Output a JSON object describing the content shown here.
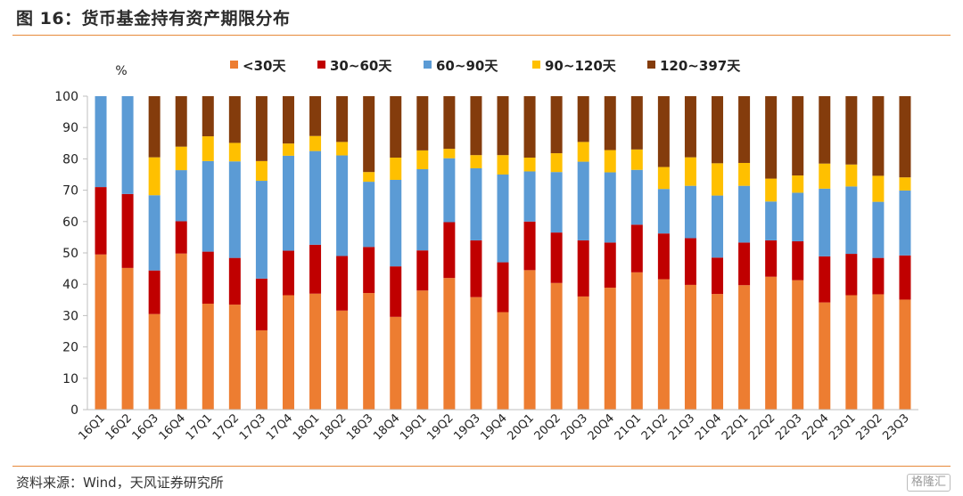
{
  "figure": {
    "title": "图 16：货币基金持有资产期限分布",
    "source": "资料来源：Wind，天风证券研究所",
    "watermark": "格隆汇"
  },
  "chart_data": {
    "type": "bar",
    "stacked": true,
    "y_unit_label": "%",
    "ylim": [
      0,
      100
    ],
    "y_ticks": [
      0,
      10,
      20,
      30,
      40,
      50,
      60,
      70,
      80,
      90,
      100
    ],
    "grid": false,
    "legend_position": "top",
    "categories": [
      "16Q1",
      "16Q2",
      "16Q3",
      "16Q4",
      "17Q1",
      "17Q2",
      "17Q3",
      "17Q4",
      "18Q1",
      "18Q2",
      "18Q3",
      "18Q4",
      "19Q1",
      "19Q2",
      "19Q3",
      "19Q4",
      "20Q1",
      "20Q2",
      "20Q3",
      "20Q4",
      "21Q1",
      "21Q2",
      "21Q3",
      "21Q4",
      "22Q1",
      "22Q2",
      "22Q3",
      "22Q4",
      "23Q1",
      "23Q2",
      "23Q3"
    ],
    "series": [
      {
        "name": "<30天",
        "color": "#ed7d31",
        "values": [
          49.5,
          45.2,
          30.5,
          49.8,
          33.8,
          33.5,
          25.3,
          36.5,
          37.0,
          31.6,
          37.2,
          29.6,
          38.0,
          42.0,
          35.9,
          31.1,
          44.5,
          40.4,
          36.1,
          38.9,
          43.8,
          41.6,
          39.8,
          36.9,
          39.7,
          42.4,
          41.3,
          34.2,
          36.5,
          36.8,
          35.1
        ]
      },
      {
        "name": "30~60天",
        "color": "#c00000",
        "values": [
          21.5,
          23.6,
          13.9,
          10.3,
          16.6,
          14.9,
          16.5,
          14.2,
          15.6,
          17.4,
          14.7,
          16.1,
          12.8,
          17.8,
          18.1,
          15.9,
          15.5,
          16.1,
          17.9,
          14.4,
          15.2,
          14.6,
          14.9,
          11.6,
          13.6,
          11.6,
          12.4,
          14.7,
          13.2,
          11.6,
          14.1
        ]
      },
      {
        "name": "60~90天",
        "color": "#5b9bd5",
        "values": [
          29.0,
          31.2,
          24.0,
          16.3,
          28.9,
          30.8,
          31.2,
          30.3,
          29.9,
          32.1,
          20.8,
          27.6,
          25.9,
          20.4,
          23.0,
          28.0,
          16.0,
          19.3,
          25.1,
          22.4,
          17.5,
          14.2,
          16.7,
          19.8,
          18.1,
          12.4,
          15.5,
          21.6,
          21.5,
          17.9,
          20.7
        ]
      },
      {
        "name": "90~120天",
        "color": "#ffc000",
        "values": [
          0,
          0,
          12.1,
          7.5,
          7.9,
          5.9,
          6.3,
          3.9,
          4.8,
          4.3,
          3.1,
          7.1,
          6.0,
          3.0,
          4.2,
          6.2,
          4.4,
          6.0,
          6.3,
          7.1,
          6.5,
          7.0,
          9.1,
          10.3,
          7.3,
          7.3,
          5.5,
          8.0,
          7.0,
          8.3,
          4.2
        ]
      },
      {
        "name": "120~397天",
        "color": "#843c0c",
        "values": [
          0,
          0,
          19.5,
          16.1,
          12.8,
          14.9,
          20.7,
          15.1,
          12.7,
          14.6,
          24.2,
          19.6,
          17.3,
          16.8,
          18.8,
          18.8,
          19.6,
          18.2,
          14.6,
          17.2,
          17.0,
          22.6,
          19.5,
          21.4,
          21.3,
          26.3,
          25.3,
          21.5,
          21.8,
          25.4,
          25.9
        ]
      }
    ]
  }
}
